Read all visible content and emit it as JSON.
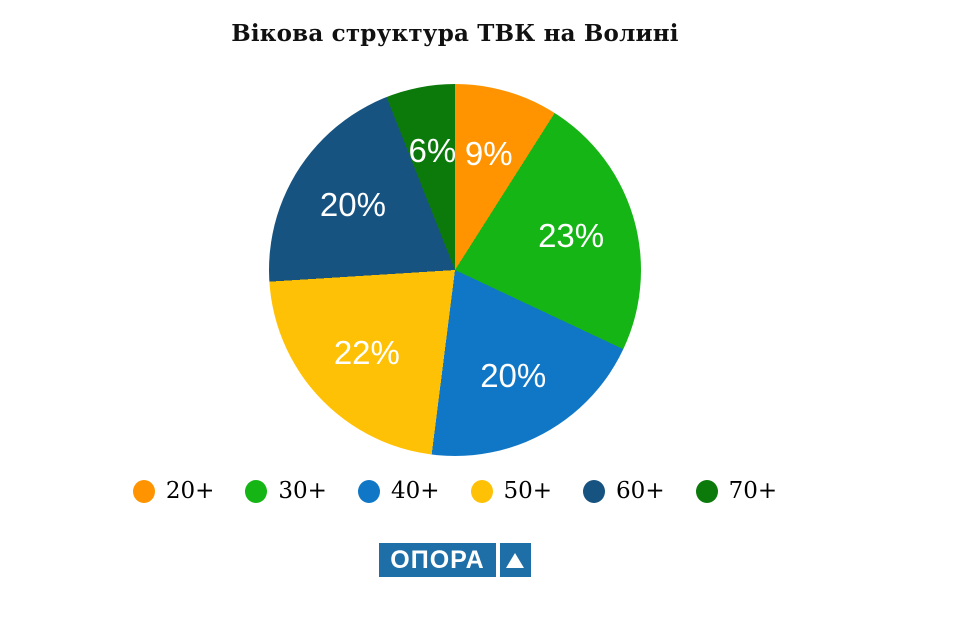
{
  "title": "Вікова структура ТВК на Волині",
  "chart_data": {
    "type": "pie",
    "title": "Вікова структура ТВК на Волині",
    "categories": [
      "20+",
      "30+",
      "40+",
      "50+",
      "60+",
      "70+"
    ],
    "values": [
      9,
      23,
      20,
      22,
      20,
      6
    ],
    "slice_labels": [
      "9%",
      "23%",
      "20%",
      "22%",
      "20%",
      "6%"
    ],
    "colors": [
      "#FF9400",
      "#14B514",
      "#1077C6",
      "#FFC106",
      "#165380",
      "#0B7A0B"
    ],
    "start_angle_deg": 0,
    "direction": "clockwise",
    "label_color": "#FFFFFF",
    "label_radius_fraction": 0.65,
    "legend_position": "bottom"
  },
  "legend": {
    "items": [
      {
        "label": "20+",
        "color": "#FF9400"
      },
      {
        "label": "30+",
        "color": "#14B514"
      },
      {
        "label": "40+",
        "color": "#1077C6"
      },
      {
        "label": "50+",
        "color": "#FFC106"
      },
      {
        "label": "60+",
        "color": "#165380"
      },
      {
        "label": "70+",
        "color": "#0B7A0B"
      }
    ]
  },
  "logo": {
    "text": "ОПОРА",
    "icon": "triangle-up-icon",
    "background": "#1E6FA7",
    "text_color": "#FFFFFF"
  }
}
